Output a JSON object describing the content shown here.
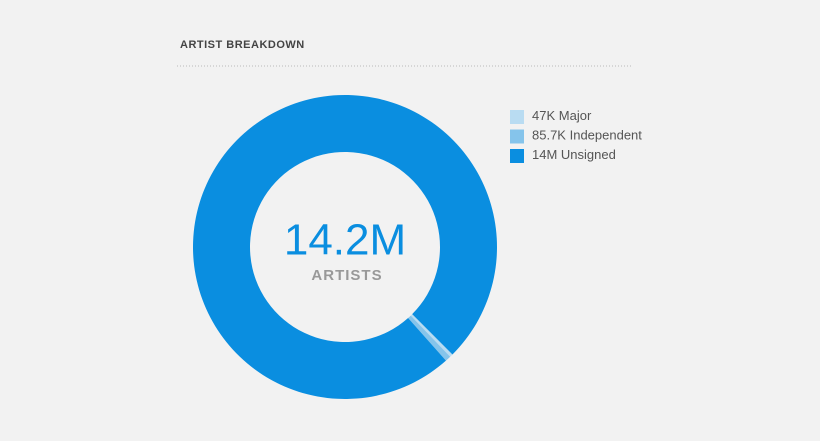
{
  "chart_data": {
    "type": "pie",
    "title": "ARTIST BREAKDOWN",
    "categories": [
      "Major",
      "Independent",
      "Unsigned"
    ],
    "values": [
      47000,
      85700,
      14000000
    ],
    "value_labels": [
      "47K",
      "85.7K",
      "14M"
    ],
    "colors": [
      "#b9dcf2",
      "#85c4eb",
      "#0a8ee0"
    ],
    "center_value": "14.2M",
    "center_label": "ARTISTS"
  }
}
